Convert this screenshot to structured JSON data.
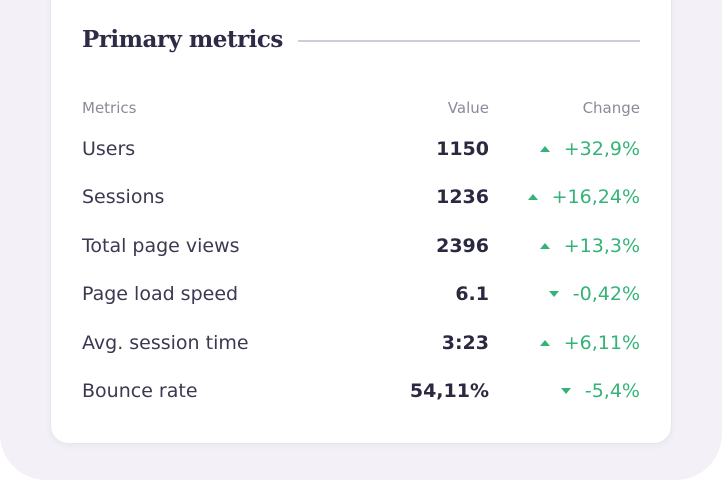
{
  "header": {
    "title": "Primary metrics"
  },
  "table": {
    "headers": [
      "Metrics",
      "Value",
      "Change"
    ],
    "rows": [
      {
        "metric": "Users",
        "value": "1150",
        "change": "+32,9%",
        "trend": "up"
      },
      {
        "metric": "Sessions",
        "value": "1236",
        "change": "+16,24%",
        "trend": "up"
      },
      {
        "metric": "Total page views",
        "value": "2396",
        "change": "+13,3%",
        "trend": "up"
      },
      {
        "metric": "Page load speed",
        "value": "6.1",
        "change": "-0,42%",
        "trend": "down"
      },
      {
        "metric": "Avg. session time",
        "value": "3:23",
        "change": "+6,11%",
        "trend": "up"
      },
      {
        "metric": "Bounce rate",
        "value": "54,11%",
        "change": "-5,4%",
        "trend": "down"
      }
    ]
  }
}
